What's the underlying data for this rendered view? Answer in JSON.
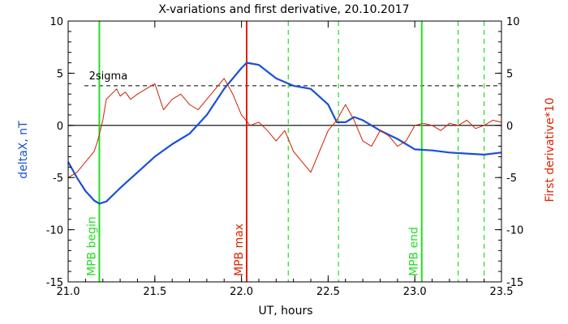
{
  "chart_data": {
    "type": "line",
    "title": "X-variations and first derivative, 20.10.2017",
    "xlabel": "UT, hours",
    "ylabel_left": "deltaX, nT",
    "ylabel_right": "First derivative*10",
    "xlim": [
      21.0,
      23.5
    ],
    "ylim": [
      -15,
      10
    ],
    "x_ticks": [
      21.0,
      21.5,
      22.0,
      22.5,
      23.0,
      23.5
    ],
    "y_ticks": [
      -15,
      -10,
      -5,
      0,
      5,
      10
    ],
    "colors": {
      "deltaX": "#1a4fd6",
      "derivative": "#cc2200",
      "mpb_begin_end": "#22dd22",
      "mpb_max": "#dd2200",
      "sigma": "#000000",
      "zero": "#000000"
    },
    "sigma_level": 3.8,
    "sigma_label": "2sigma",
    "vertical_lines": [
      {
        "x": 21.18,
        "style": "solid",
        "color": "#22dd22",
        "label": "MPB begin"
      },
      {
        "x": 22.03,
        "style": "solid",
        "color": "#dd2200",
        "label": "MPB max"
      },
      {
        "x": 23.04,
        "style": "solid",
        "color": "#22dd22",
        "label": "MPB end"
      },
      {
        "x": 22.27,
        "style": "dashed",
        "color": "#22dd22",
        "label": ""
      },
      {
        "x": 22.56,
        "style": "dashed",
        "color": "#22dd22",
        "label": ""
      },
      {
        "x": 23.25,
        "style": "dashed",
        "color": "#22dd22",
        "label": ""
      },
      {
        "x": 23.4,
        "style": "dashed",
        "color": "#22dd22",
        "label": ""
      }
    ],
    "series": [
      {
        "x": [
          21.0,
          21.05,
          21.1,
          21.15,
          21.18,
          21.22,
          21.3,
          21.4,
          21.5,
          21.6,
          21.7,
          21.8,
          21.9,
          22.0,
          22.03,
          22.1,
          22.2,
          22.3,
          22.4,
          22.5,
          22.55,
          22.6,
          22.65,
          22.7,
          22.8,
          22.9,
          23.0,
          23.1,
          23.2,
          23.3,
          23.4,
          23.5
        ],
        "y": [
          -3.5,
          -5.0,
          -6.3,
          -7.2,
          -7.5,
          -7.3,
          -6.0,
          -4.5,
          -3.0,
          -1.8,
          -0.8,
          1.0,
          3.5,
          5.5,
          6.0,
          5.8,
          4.5,
          3.8,
          3.5,
          2.0,
          0.3,
          0.3,
          0.8,
          0.5,
          -0.5,
          -1.3,
          -2.3,
          -2.4,
          -2.6,
          -2.7,
          -2.8,
          -2.6
        ]
      },
      {
        "x": [
          21.0,
          21.05,
          21.1,
          21.15,
          21.17,
          21.2,
          21.22,
          21.25,
          21.28,
          21.3,
          21.33,
          21.36,
          21.4,
          21.45,
          21.5,
          21.55,
          21.6,
          21.65,
          21.7,
          21.75,
          21.8,
          21.85,
          21.9,
          21.95,
          22.0,
          22.05,
          22.1,
          22.15,
          22.2,
          22.25,
          22.3,
          22.35,
          22.4,
          22.45,
          22.5,
          22.55,
          22.6,
          22.65,
          22.7,
          22.75,
          22.8,
          22.85,
          22.9,
          22.95,
          23.0,
          23.05,
          23.1,
          23.15,
          23.2,
          23.25,
          23.3,
          23.35,
          23.4,
          23.45,
          23.5
        ],
        "y": [
          -5.0,
          -4.5,
          -3.5,
          -2.5,
          -1.5,
          0.5,
          2.5,
          3.0,
          3.5,
          2.8,
          3.2,
          2.5,
          3.0,
          3.5,
          4.0,
          1.5,
          2.5,
          3.0,
          2.0,
          1.5,
          2.5,
          3.5,
          4.5,
          3.0,
          1.0,
          0.0,
          0.3,
          -0.5,
          -1.5,
          -0.5,
          -2.5,
          -3.5,
          -4.5,
          -2.5,
          -0.5,
          0.5,
          2.0,
          0.5,
          -1.5,
          -2.0,
          -0.5,
          -1.0,
          -2.0,
          -1.5,
          0.0,
          0.2,
          0.0,
          -0.5,
          0.2,
          0.0,
          0.5,
          -0.3,
          0.0,
          0.5,
          0.3
        ]
      }
    ]
  }
}
